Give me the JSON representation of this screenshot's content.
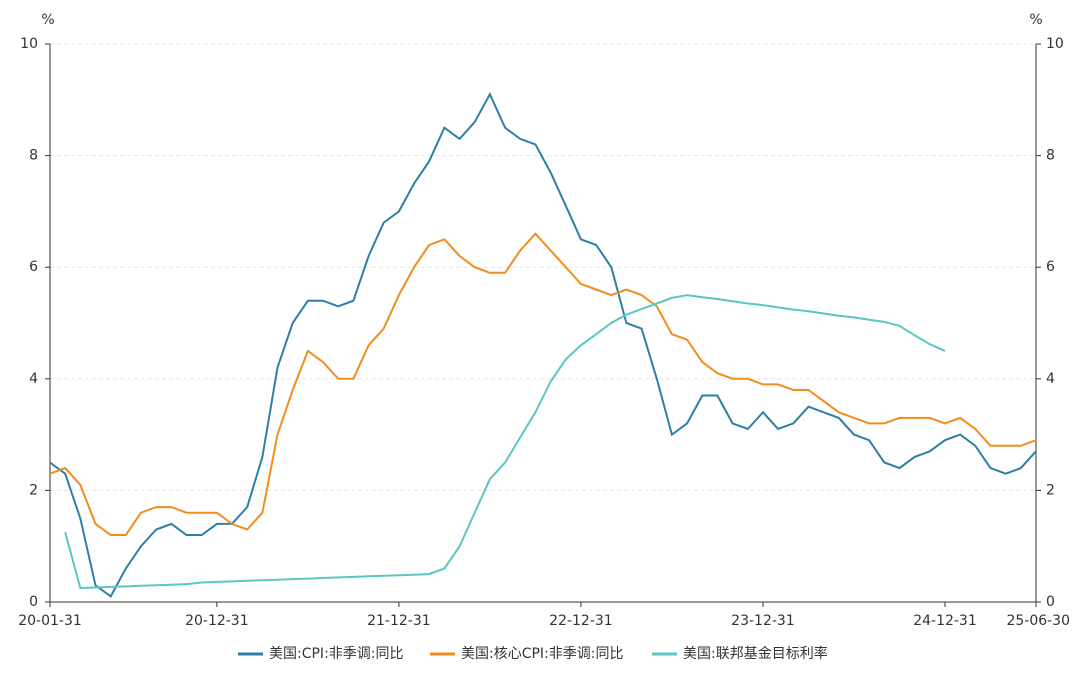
{
  "chart_data": {
    "type": "line",
    "y_unit": "%",
    "y2_unit": "%",
    "categories": [
      "20-01-31",
      null,
      null,
      null,
      null,
      null,
      null,
      null,
      null,
      null,
      null,
      "20-12-31",
      null,
      null,
      null,
      null,
      null,
      null,
      null,
      null,
      null,
      null,
      null,
      "21-12-31",
      null,
      null,
      null,
      null,
      null,
      null,
      null,
      null,
      null,
      null,
      null,
      "22-12-31",
      null,
      null,
      null,
      null,
      null,
      null,
      null,
      null,
      null,
      null,
      null,
      "23-12-31",
      null,
      null,
      null,
      null,
      null,
      null,
      null,
      null,
      null,
      null,
      null,
      "24-12-31",
      null,
      null,
      null,
      null,
      null,
      "25-06-30"
    ],
    "series": [
      {
        "name": "美国:CPI:非季调:同比",
        "color": "#2e7ea6",
        "axis": "y",
        "values": [
          2.5,
          2.3,
          1.5,
          0.3,
          0.1,
          0.6,
          1.0,
          1.3,
          1.4,
          1.2,
          1.2,
          1.4,
          1.4,
          1.7,
          2.6,
          4.2,
          5.0,
          5.4,
          5.4,
          5.3,
          5.4,
          6.2,
          6.8,
          7.0,
          7.5,
          7.9,
          8.5,
          8.3,
          8.6,
          9.1,
          8.5,
          8.3,
          8.2,
          7.7,
          7.1,
          6.5,
          6.4,
          6.0,
          5.0,
          4.9,
          4.0,
          3.0,
          3.2,
          3.7,
          3.7,
          3.2,
          3.1,
          3.4,
          3.1,
          3.2,
          3.5,
          3.4,
          3.3,
          3.0,
          2.9,
          2.5,
          2.4,
          2.6,
          2.7,
          2.9,
          3.0,
          2.8,
          2.4,
          2.3,
          2.4,
          2.7
        ]
      },
      {
        "name": "美国:核心CPI:非季调:同比",
        "color": "#f28c1e",
        "axis": "y",
        "values": [
          2.3,
          2.4,
          2.1,
          1.4,
          1.2,
          1.2,
          1.6,
          1.7,
          1.7,
          1.6,
          1.6,
          1.6,
          1.4,
          1.3,
          1.6,
          3.0,
          3.8,
          4.5,
          4.3,
          4.0,
          4.0,
          4.6,
          4.9,
          5.5,
          6.0,
          6.4,
          6.5,
          6.2,
          6.0,
          5.9,
          5.9,
          6.3,
          6.6,
          6.3,
          6.0,
          5.7,
          5.6,
          5.5,
          5.6,
          5.5,
          5.3,
          4.8,
          4.7,
          4.3,
          4.1,
          4.0,
          4.0,
          3.9,
          3.9,
          3.8,
          3.8,
          3.6,
          3.4,
          3.3,
          3.2,
          3.2,
          3.3,
          3.3,
          3.3,
          3.2,
          3.3,
          3.1,
          2.8,
          2.8,
          2.8,
          2.9
        ]
      },
      {
        "name": "美国:联邦基金目标利率",
        "color": "#5cc5c5",
        "axis": "y2",
        "values": [
          null,
          1.25,
          0.25,
          0.26,
          0.27,
          0.28,
          0.29,
          0.3,
          0.31,
          0.32,
          0.35,
          0.36,
          0.37,
          0.38,
          0.39,
          0.4,
          0.41,
          0.42,
          0.43,
          0.44,
          0.45,
          0.46,
          0.47,
          0.48,
          0.49,
          0.5,
          0.6,
          1.0,
          1.6,
          2.2,
          2.5,
          2.95,
          3.4,
          3.95,
          4.35,
          4.6,
          4.8,
          5.0,
          5.15,
          5.25,
          5.35,
          5.45,
          5.5,
          5.46,
          5.43,
          5.39,
          5.35,
          5.32,
          5.28,
          5.24,
          5.21,
          5.17,
          5.13,
          5.1,
          5.06,
          5.02,
          4.95,
          4.78,
          4.62,
          4.5,
          null,
          null,
          null,
          null,
          null,
          null
        ]
      }
    ],
    "ylim": [
      0,
      10
    ],
    "yticks": [
      0,
      2,
      4,
      6,
      8,
      10
    ],
    "y2lim": [
      0,
      10
    ],
    "y2ticks": [
      0,
      2,
      4,
      6,
      8,
      10
    ],
    "grid": true,
    "legend": "bottom"
  }
}
